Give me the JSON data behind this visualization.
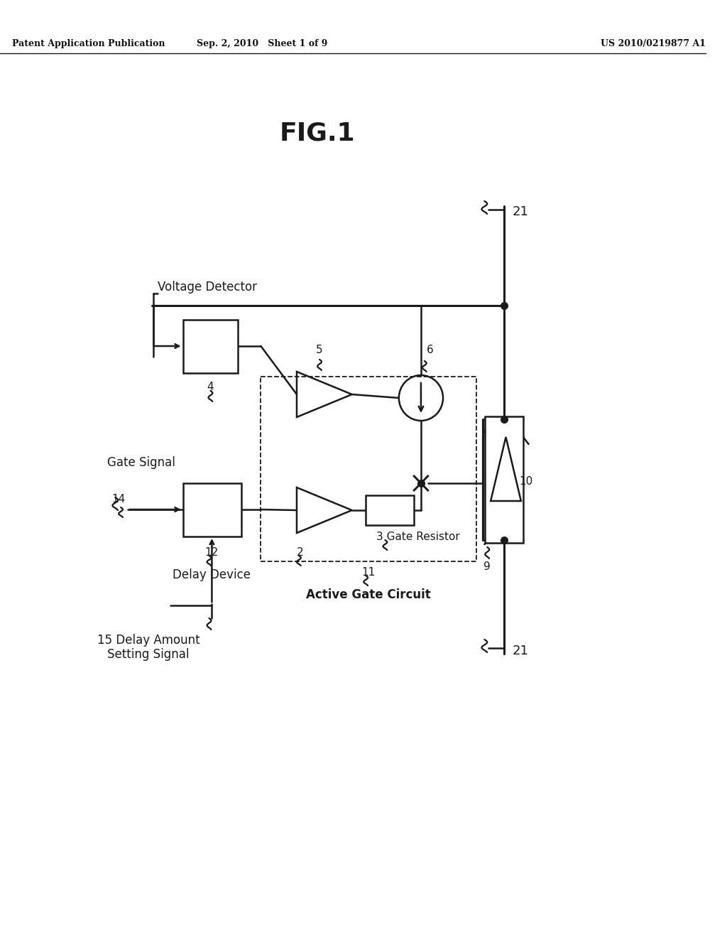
{
  "title": "FIG.1",
  "header_left": "Patent Application Publication",
  "header_center": "Sep. 2, 2010   Sheet 1 of 9",
  "header_right": "US 2010/0219877 A1",
  "bg_color": "#ffffff",
  "line_color": "#1a1a1a",
  "fig_width": 10.24,
  "fig_height": 13.2,
  "labels": {
    "voltage_detector": "Voltage Detector",
    "gate_signal": "Gate Signal",
    "delay_device": "Delay Device",
    "active_gate_circuit": "Active Gate Circuit",
    "gate_resistor": "Gate Resistor",
    "delay_amount_line1": "15 Delay Amount",
    "delay_amount_line2": "Setting Signal",
    "num4": "4",
    "num5": "5",
    "num6": "6",
    "num9": "9",
    "num10": "10",
    "num11": "11",
    "num12": "12",
    "num14": "14",
    "num2": "2",
    "num3": "3",
    "num21a": "21",
    "num21b": "21"
  }
}
